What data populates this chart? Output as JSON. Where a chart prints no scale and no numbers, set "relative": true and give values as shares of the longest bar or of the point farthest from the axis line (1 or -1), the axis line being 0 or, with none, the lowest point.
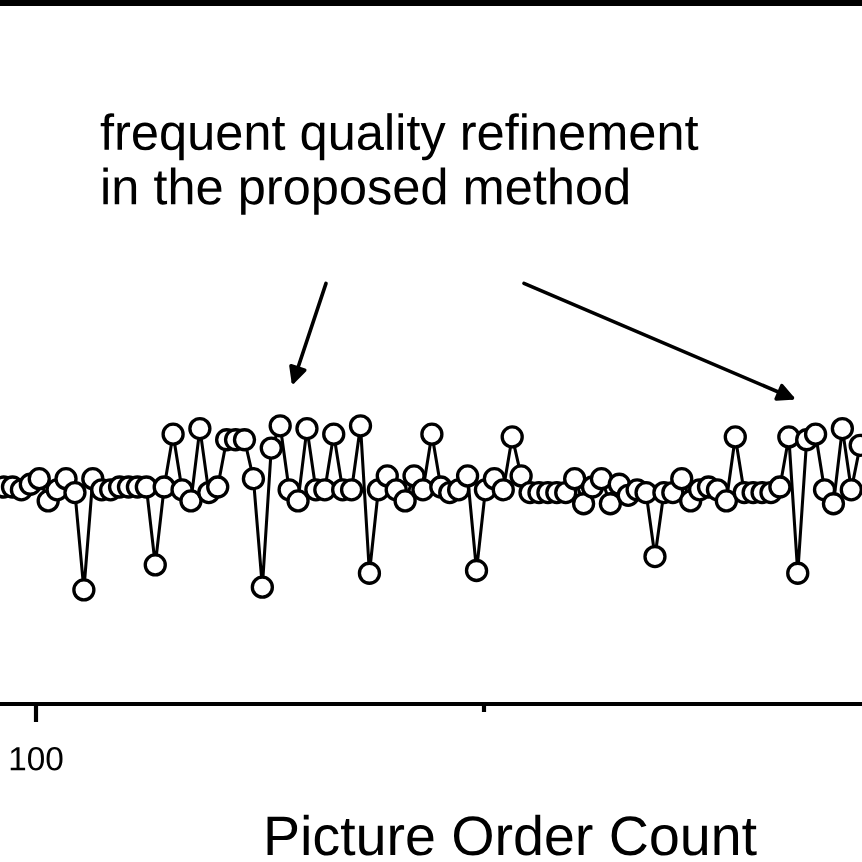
{
  "chart_data": {
    "type": "line",
    "relative": true,
    "xlabel": "Picture Order Count",
    "categories": [
      null,
      null,
      null,
      null,
      null,
      null,
      null,
      null,
      null,
      null,
      null,
      null,
      null,
      null,
      null,
      null,
      null,
      null,
      null,
      null,
      null,
      null,
      null,
      null,
      null,
      null,
      null,
      null,
      null,
      null,
      null,
      null,
      null,
      null,
      null,
      null,
      null,
      null,
      null,
      null,
      null,
      null,
      null,
      null,
      null,
      null,
      null,
      null,
      null,
      null,
      null,
      null,
      null,
      null,
      null,
      null,
      null,
      null,
      null,
      null,
      null,
      null,
      null,
      null,
      null,
      null,
      null,
      null,
      null,
      null,
      null,
      null,
      null,
      null,
      null,
      null,
      null,
      null,
      null,
      null,
      null,
      null,
      null,
      null,
      null,
      null,
      null,
      null,
      null,
      null,
      null,
      null,
      null,
      null,
      null,
      null,
      null
    ],
    "values": [
      0.78,
      0.78,
      0.77,
      0.79,
      0.81,
      0.73,
      0.77,
      0.81,
      0.76,
      0.41,
      0.81,
      0.77,
      0.77,
      0.78,
      0.78,
      0.78,
      0.78,
      0.5,
      0.78,
      0.97,
      0.77,
      0.73,
      0.99,
      0.76,
      0.78,
      0.95,
      0.95,
      0.95,
      0.81,
      0.42,
      0.92,
      1.0,
      0.77,
      0.73,
      0.99,
      0.77,
      0.77,
      0.97,
      0.77,
      0.77,
      1.0,
      0.47,
      0.77,
      0.82,
      0.77,
      0.73,
      0.82,
      0.77,
      0.97,
      0.78,
      0.76,
      0.77,
      0.82,
      0.48,
      0.77,
      0.81,
      0.77,
      0.96,
      0.82,
      0.76,
      0.76,
      0.76,
      0.76,
      0.76,
      0.81,
      0.72,
      0.78,
      0.81,
      0.72,
      0.79,
      0.75,
      0.77,
      0.76,
      0.53,
      0.76,
      0.76,
      0.81,
      0.73,
      0.77,
      0.78,
      0.77,
      0.73,
      0.96,
      0.76,
      0.76,
      0.76,
      0.76,
      0.78,
      0.96,
      0.47,
      0.95,
      0.97,
      0.77,
      0.72,
      0.99,
      0.77,
      0.93
    ],
    "color": "#000000",
    "marker": "circle",
    "line_style": "solid",
    "annotations": [
      "frequent quality refinement\nin the proposed method",
      "100"
    ]
  }
}
